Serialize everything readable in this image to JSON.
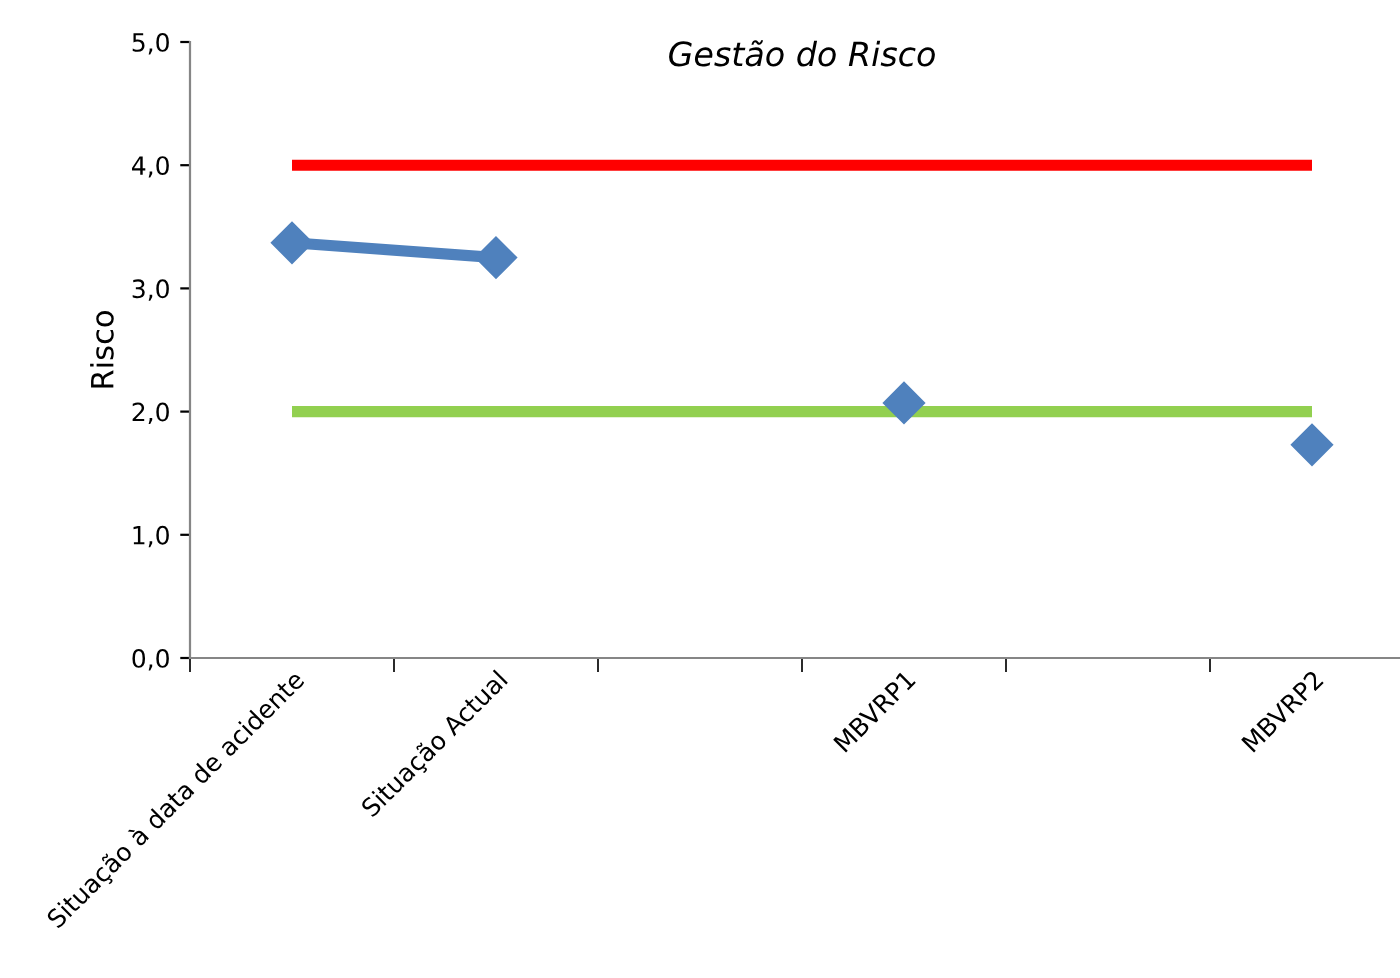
{
  "chart_data": {
    "type": "line",
    "title": "Gestão do Risco",
    "ylabel": "Risco",
    "categories": [
      "Situação à data de acidente",
      "Situação Actual",
      null,
      "MBVRP1",
      null,
      "MBVRP2"
    ],
    "series": [
      {
        "color": "#4f81bd",
        "marker": "diamond",
        "values": [
          3.37,
          3.25,
          null,
          2.07,
          null,
          1.73
        ]
      },
      {
        "color": "#ff0000",
        "marker": "none",
        "values": [
          4.0,
          4.0,
          4.0,
          4.0,
          4.0,
          4.0
        ]
      },
      {
        "color": "#92d050",
        "marker": "none",
        "values": [
          2.0,
          2.0,
          2.0,
          2.0,
          2.0,
          2.0
        ]
      }
    ],
    "ylim": [
      0,
      5
    ],
    "yticks": [
      {
        "value": 0,
        "label": "0,0"
      },
      {
        "value": 1,
        "label": "1,0"
      },
      {
        "value": 2,
        "label": "2,0"
      },
      {
        "value": 3,
        "label": "3,0"
      },
      {
        "value": 4,
        "label": "4,0"
      },
      {
        "value": 5,
        "label": "5,0"
      }
    ],
    "grid": false,
    "legend": false
  }
}
